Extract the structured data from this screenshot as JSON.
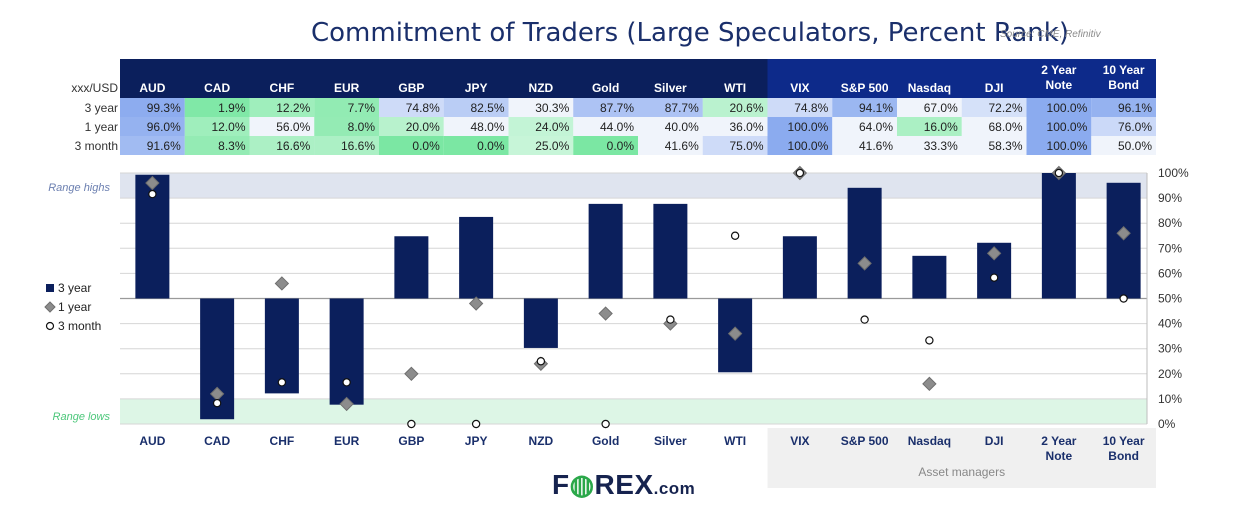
{
  "header": {
    "title": "Commitment of Traders (Large Speculators, Percent Rank)",
    "source": "Source: CME, Refinitiv"
  },
  "table": {
    "corner": "xxx/USD",
    "columns": [
      "AUD",
      "CAD",
      "CHF",
      "EUR",
      "GBP",
      "JPY",
      "NZD",
      "Gold",
      "Silver",
      "WTI",
      "VIX",
      "S&P 500",
      "Nasdaq",
      "DJI",
      "2 Year\nNote",
      "10 Year\nBond"
    ],
    "rows": [
      {
        "label": "3 year",
        "values": [
          "99.3%",
          "1.9%",
          "12.2%",
          "7.7%",
          "74.8%",
          "82.5%",
          "30.3%",
          "87.7%",
          "87.7%",
          "20.6%",
          "74.8%",
          "94.1%",
          "67.0%",
          "72.2%",
          "100.0%",
          "96.1%"
        ]
      },
      {
        "label": "1 year",
        "values": [
          "96.0%",
          "12.0%",
          "56.0%",
          "8.0%",
          "20.0%",
          "48.0%",
          "24.0%",
          "44.0%",
          "40.0%",
          "36.0%",
          "100.0%",
          "64.0%",
          "16.0%",
          "68.0%",
          "100.0%",
          "76.0%"
        ]
      },
      {
        "label": "3 month",
        "values": [
          "91.6%",
          "8.3%",
          "16.6%",
          "16.6%",
          "0.0%",
          "0.0%",
          "25.0%",
          "0.0%",
          "41.6%",
          "75.0%",
          "100.0%",
          "41.6%",
          "33.3%",
          "58.3%",
          "100.0%",
          "50.0%"
        ]
      }
    ]
  },
  "chart_data": {
    "type": "bar",
    "categories": [
      "AUD",
      "CAD",
      "CHF",
      "EUR",
      "GBP",
      "JPY",
      "NZD",
      "Gold",
      "Silver",
      "WTI",
      "VIX",
      "S&P 500",
      "Nasdaq",
      "DJI",
      "2 Year\nNote",
      "10 Year\nBond"
    ],
    "baseline": 50,
    "ylim": [
      0,
      100
    ],
    "yticks": [
      "0%",
      "10%",
      "20%",
      "30%",
      "40%",
      "50%",
      "60%",
      "70%",
      "80%",
      "90%",
      "100%"
    ],
    "series": [
      {
        "name": "3 year",
        "marker": "bar",
        "values": [
          99.3,
          1.9,
          12.2,
          7.7,
          74.8,
          82.5,
          30.3,
          87.7,
          87.7,
          20.6,
          74.8,
          94.1,
          67.0,
          72.2,
          100.0,
          96.1
        ]
      },
      {
        "name": "1 year",
        "marker": "diamond",
        "values": [
          96.0,
          12.0,
          56.0,
          8.0,
          20.0,
          48.0,
          24.0,
          44.0,
          40.0,
          36.0,
          100.0,
          64.0,
          16.0,
          68.0,
          100.0,
          76.0
        ]
      },
      {
        "name": "3 month",
        "marker": "circle",
        "values": [
          91.6,
          8.3,
          16.6,
          16.6,
          0.0,
          0.0,
          25.0,
          0.0,
          41.6,
          75.0,
          100.0,
          41.6,
          33.3,
          58.3,
          100.0,
          50.0
        ]
      }
    ],
    "range_high_label": "Range highs",
    "range_low_label": "Range lows",
    "range_high_band": [
      90,
      100
    ],
    "range_low_band": [
      0,
      10
    ],
    "group_label": "Asset managers",
    "group_start_index": 10
  },
  "colors": {
    "bar": "#0b1f5c",
    "header_bg": "#0b1f5c",
    "range_high": "#dfe4ef",
    "range_low": "#ddf6e6",
    "group_bg": "#f0f0f0"
  },
  "brand": {
    "logo_left": "F",
    "logo_right": "REX",
    "logo_suffix": ".com"
  }
}
